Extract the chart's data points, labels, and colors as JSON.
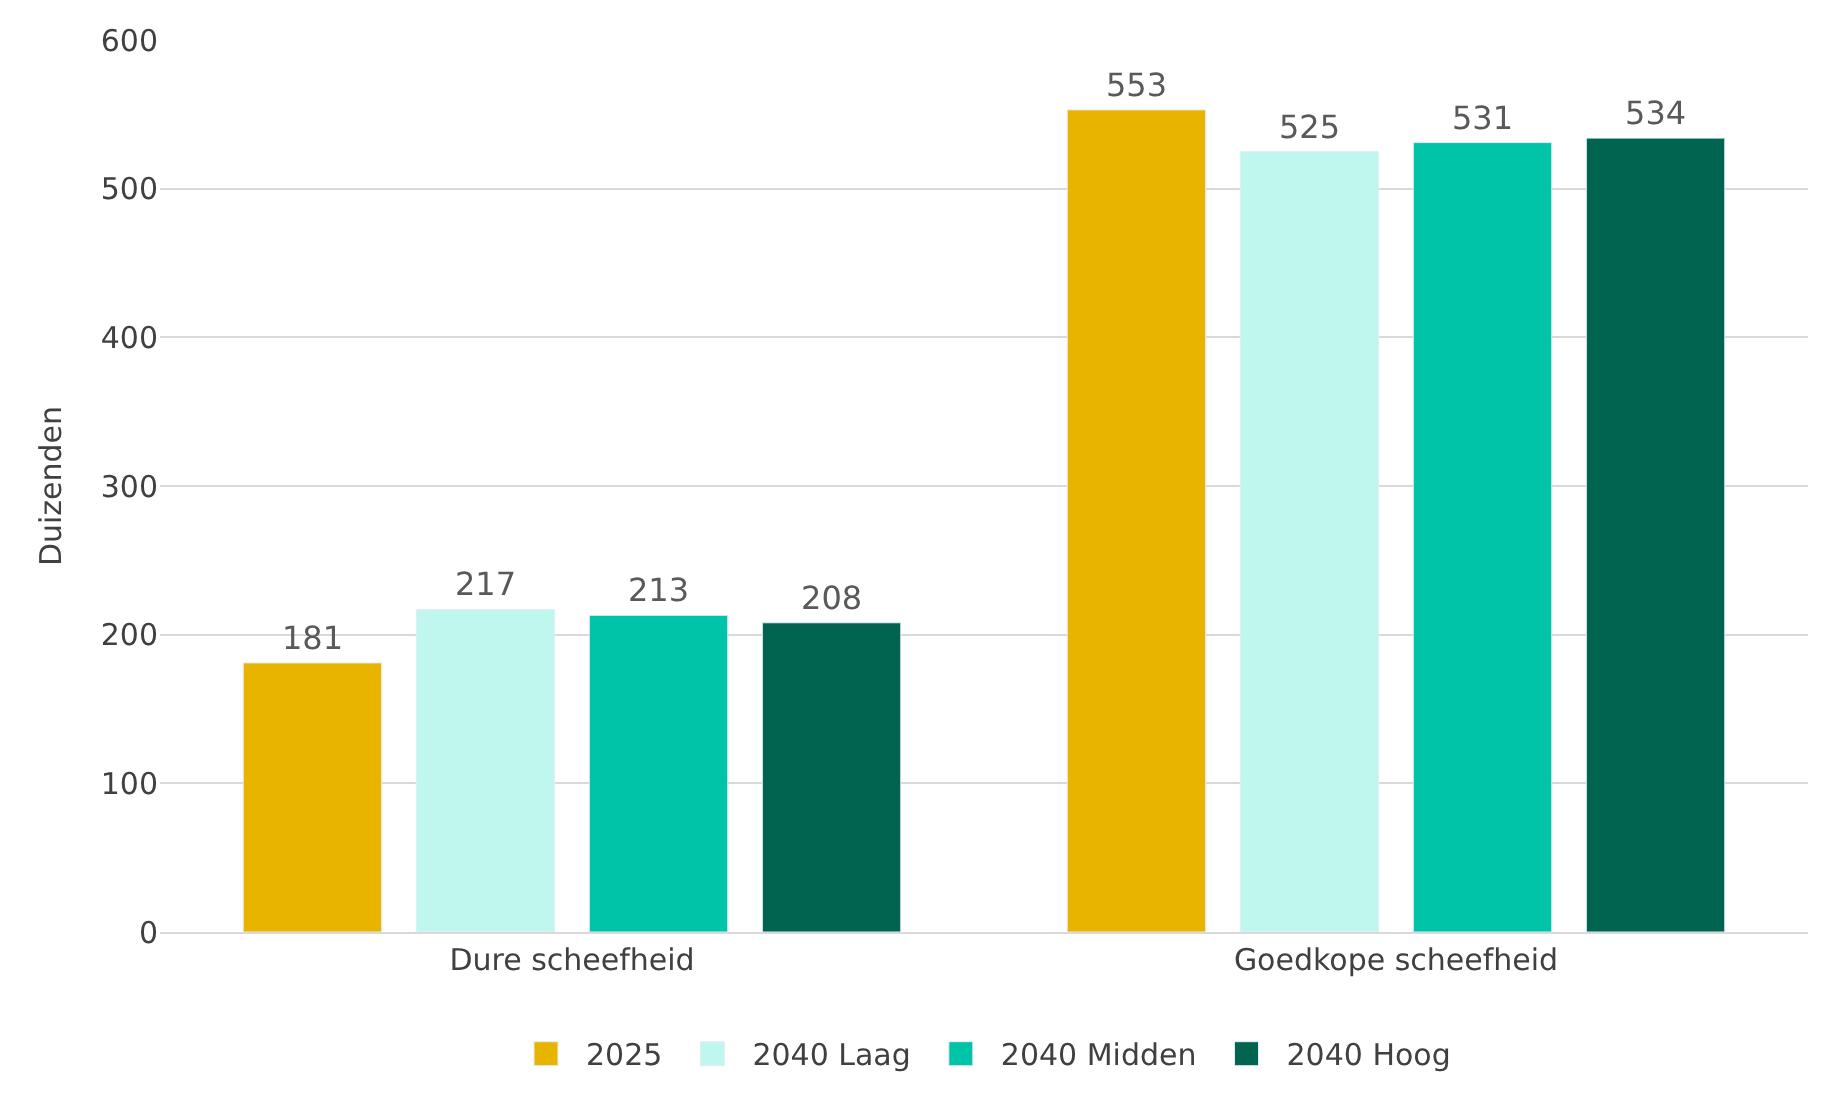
{
  "chart_data": {
    "type": "bar",
    "ylabel": "Duizenden",
    "categories": [
      "Dure scheefheid",
      "Goedkope scheefheid"
    ],
    "series": [
      {
        "name": "2025",
        "color": "#e8b400",
        "values": [
          181,
          553
        ]
      },
      {
        "name": "2040 Laag",
        "color": "#bff7ef",
        "values": [
          217,
          525
        ]
      },
      {
        "name": "2040 Midden",
        "color": "#00c4a8",
        "values": [
          213,
          531
        ]
      },
      {
        "name": "2040 Hoog",
        "color": "#006450",
        "values": [
          208,
          534
        ]
      }
    ],
    "ylim": [
      0,
      600
    ],
    "yticks": [
      0,
      100,
      200,
      300,
      400,
      500,
      600
    ],
    "grid": "y",
    "legend": "bottom",
    "data_labels": true
  }
}
